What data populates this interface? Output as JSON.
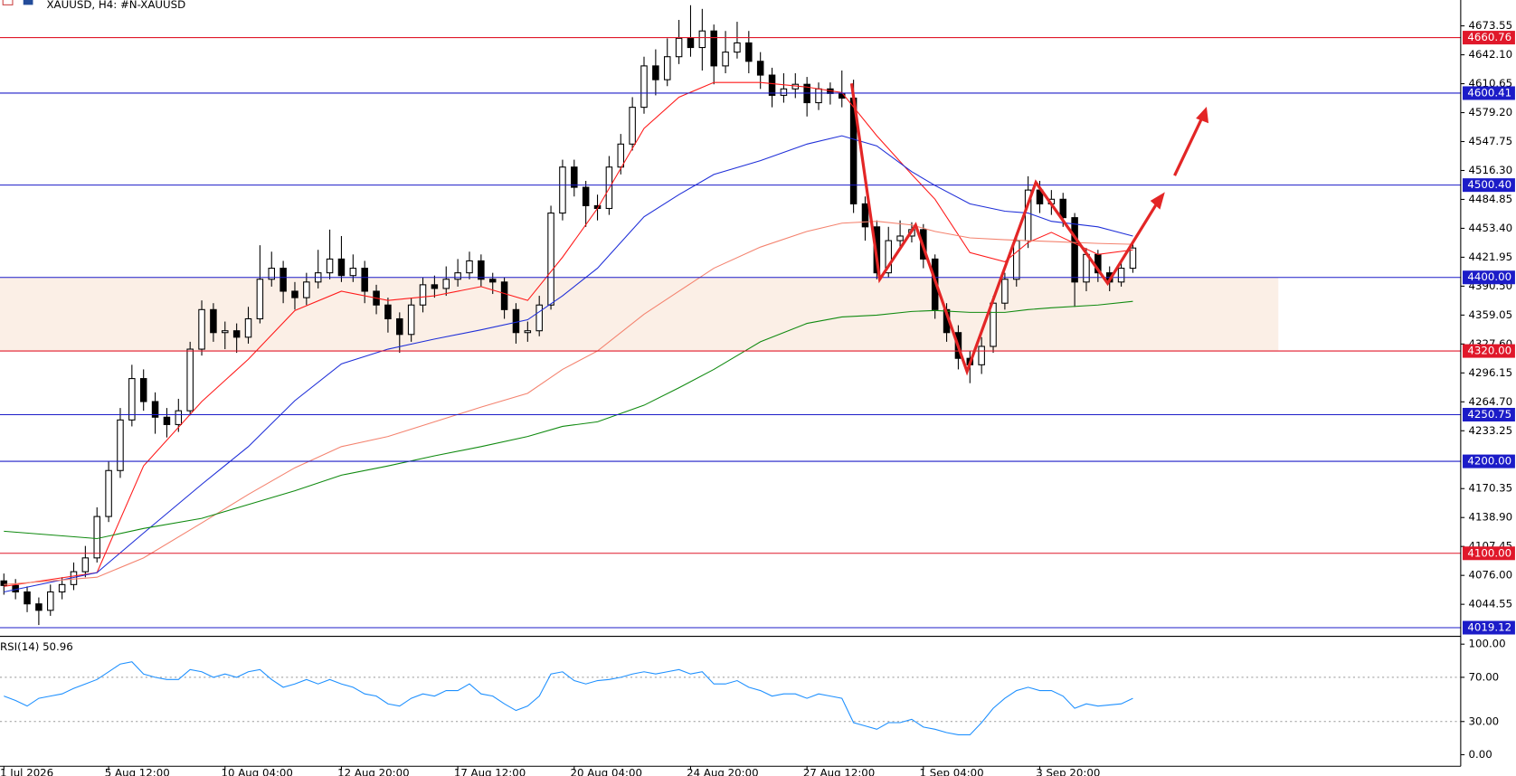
{
  "header": {
    "title": "XAUUSD, H4:  #N-XAUUSD"
  },
  "chart_data": [
    {
      "type": "candlestick",
      "categories": [
        "1 Jul 2026",
        null,
        null,
        null,
        null,
        null,
        null,
        null,
        null,
        "5 Aug 12:00",
        null,
        null,
        null,
        null,
        null,
        null,
        null,
        null,
        null,
        "10 Aug 04:00",
        null,
        null,
        null,
        null,
        null,
        null,
        null,
        null,
        null,
        "12 Aug 20:00",
        null,
        null,
        null,
        null,
        null,
        null,
        null,
        null,
        null,
        "17 Aug 12:00",
        null,
        null,
        null,
        null,
        null,
        null,
        null,
        null,
        null,
        "20 Aug 04:00",
        null,
        null,
        null,
        null,
        null,
        null,
        null,
        null,
        null,
        "24 Aug 20:00",
        null,
        null,
        null,
        null,
        null,
        null,
        null,
        null,
        null,
        "27 Aug 12:00",
        null,
        null,
        null,
        null,
        null,
        null,
        null,
        null,
        null,
        "1 Sep 04:00",
        null,
        null,
        null,
        null,
        null,
        null,
        null,
        null,
        null,
        "3 Sep 20:00",
        null,
        null,
        null,
        null,
        null,
        null,
        null,
        null
      ],
      "open": [
        4070,
        4065,
        4058,
        4045,
        4038,
        4058,
        4066,
        4080,
        4095,
        4140,
        4190,
        4245,
        4290,
        4265,
        4248,
        4240,
        4255,
        4322,
        4365,
        4340,
        4342,
        4335,
        4355,
        4398,
        4410,
        4385,
        4378,
        4395,
        4405,
        4420,
        4402,
        4410,
        4385,
        4370,
        4355,
        4338,
        4370,
        4392,
        4388,
        4398,
        4405,
        4418,
        4398,
        4395,
        4365,
        4340,
        4342,
        4370,
        4470,
        4520,
        4498,
        4478,
        4475,
        4520,
        4545,
        4585,
        4630,
        4615,
        4640,
        4660,
        4650,
        4668,
        4630,
        4645,
        4655,
        4635,
        4620,
        4598,
        4605,
        4610,
        4590,
        4605,
        4600,
        4595,
        4480,
        4455,
        4405,
        4440,
        4445,
        4452,
        4420,
        4365,
        4340,
        4312,
        4305,
        4325,
        4372,
        4398,
        4440,
        4495,
        4480,
        4485,
        4465,
        4395,
        4425,
        4405,
        4395,
        4410
      ],
      "high": [
        4078,
        4072,
        4064,
        4052,
        4066,
        4074,
        4090,
        4108,
        4150,
        4200,
        4258,
        4305,
        4300,
        4275,
        4258,
        4268,
        4330,
        4375,
        4372,
        4352,
        4350,
        4368,
        4435,
        4428,
        4418,
        4395,
        4405,
        4430,
        4452,
        4445,
        4425,
        4418,
        4392,
        4378,
        4362,
        4378,
        4400,
        4402,
        4412,
        4420,
        4428,
        4425,
        4405,
        4400,
        4372,
        4352,
        4380,
        4478,
        4528,
        4528,
        4505,
        4490,
        4532,
        4556,
        4596,
        4640,
        4648,
        4660,
        4680,
        4696,
        4692,
        4675,
        4668,
        4678,
        4668,
        4645,
        4628,
        4622,
        4622,
        4618,
        4612,
        4612,
        4625,
        4615,
        4488,
        4462,
        4455,
        4462,
        4460,
        4458,
        4425,
        4372,
        4348,
        4320,
        4335,
        4380,
        4405,
        4448,
        4510,
        4505,
        4495,
        4492,
        4470,
        4432,
        4430,
        4412,
        4418,
        4440
      ],
      "low": [
        4055,
        4050,
        4036,
        4022,
        4032,
        4050,
        4060,
        4074,
        4090,
        4134,
        4182,
        4238,
        4255,
        4230,
        4226,
        4232,
        4250,
        4315,
        4330,
        4322,
        4318,
        4328,
        4350,
        4390,
        4372,
        4365,
        4370,
        4388,
        4398,
        4395,
        4395,
        4372,
        4360,
        4340,
        4318,
        4330,
        4362,
        4378,
        4380,
        4390,
        4398,
        4390,
        4382,
        4355,
        4328,
        4330,
        4336,
        4365,
        4462,
        4488,
        4455,
        4462,
        4468,
        4512,
        4538,
        4578,
        4598,
        4608,
        4632,
        4640,
        4625,
        4610,
        4622,
        4638,
        4622,
        4605,
        4585,
        4590,
        4595,
        4575,
        4582,
        4588,
        4585,
        4470,
        4440,
        4398,
        4400,
        4432,
        4438,
        4410,
        4355,
        4330,
        4300,
        4285,
        4295,
        4318,
        4365,
        4390,
        4432,
        4470,
        4468,
        4455,
        4368,
        4385,
        4395,
        4385,
        4390,
        4405
      ],
      "close": [
        4065,
        4058,
        4045,
        4038,
        4058,
        4066,
        4080,
        4095,
        4140,
        4190,
        4245,
        4290,
        4265,
        4248,
        4240,
        4255,
        4322,
        4365,
        4340,
        4342,
        4335,
        4355,
        4398,
        4410,
        4385,
        4378,
        4395,
        4405,
        4420,
        4402,
        4410,
        4385,
        4370,
        4355,
        4338,
        4370,
        4392,
        4388,
        4398,
        4405,
        4418,
        4398,
        4395,
        4365,
        4340,
        4342,
        4370,
        4470,
        4520,
        4498,
        4478,
        4475,
        4520,
        4545,
        4585,
        4630,
        4615,
        4640,
        4660,
        4650,
        4668,
        4630,
        4645,
        4655,
        4635,
        4620,
        4598,
        4605,
        4610,
        4590,
        4605,
        4600,
        4595,
        4480,
        4455,
        4405,
        4440,
        4445,
        4452,
        4420,
        4365,
        4340,
        4312,
        4305,
        4325,
        4372,
        4398,
        4440,
        4495,
        4480,
        4485,
        4465,
        4395,
        4425,
        4405,
        4395,
        4410,
        4432
      ],
      "up_color": "#ffffff",
      "down_color": "#000000",
      "lines": [
        {
          "color": "#ff1a1a",
          "x": [
            0,
            8,
            12,
            17,
            21,
            25,
            29,
            33,
            37,
            41,
            45,
            48,
            51,
            55,
            58,
            61,
            65,
            69,
            72,
            75,
            78,
            80,
            83,
            86,
            88,
            90,
            94,
            97
          ],
          "values": [
            4064,
            4079,
            4195,
            4265,
            4311,
            4364,
            4385,
            4375,
            4380,
            4390,
            4375,
            4422,
            4475,
            4562,
            4596,
            4612,
            4612,
            4607,
            4601,
            4554,
            4512,
            4485,
            4427,
            4417,
            4438,
            4449,
            4425,
            4430
          ]
        },
        {
          "color": "#1f2fd8",
          "x": [
            0,
            8,
            12,
            17,
            21,
            25,
            29,
            33,
            37,
            41,
            45,
            48,
            51,
            55,
            58,
            61,
            65,
            69,
            72,
            75,
            78,
            80,
            83,
            86,
            88,
            90,
            94,
            97
          ],
          "values": [
            4058,
            4079,
            4122,
            4175,
            4216,
            4266,
            4306,
            4322,
            4333,
            4343,
            4354,
            4380,
            4410,
            4466,
            4490,
            4512,
            4527,
            4545,
            4554,
            4543,
            4515,
            4500,
            4480,
            4472,
            4470,
            4461,
            4455,
            4445
          ]
        },
        {
          "color": "#f4836f",
          "x": [
            0,
            8,
            12,
            17,
            21,
            25,
            29,
            33,
            37,
            41,
            45,
            48,
            51,
            55,
            58,
            61,
            65,
            69,
            72,
            75,
            78,
            80,
            83,
            86,
            88,
            90,
            94,
            97
          ],
          "values": [
            4066,
            4074,
            4095,
            4133,
            4164,
            4193,
            4216,
            4227,
            4243,
            4259,
            4274,
            4300,
            4320,
            4360,
            4385,
            4410,
            4433,
            4450,
            4459,
            4461,
            4457,
            4450,
            4443,
            4441,
            4440,
            4439,
            4437,
            4436
          ]
        },
        {
          "color": "#108a10",
          "x": [
            0,
            8,
            12,
            17,
            21,
            25,
            29,
            33,
            37,
            41,
            45,
            48,
            51,
            55,
            58,
            61,
            65,
            69,
            72,
            75,
            78,
            80,
            83,
            86,
            88,
            90,
            94,
            97
          ],
          "values": [
            4124,
            4116,
            4127,
            4138,
            4153,
            4168,
            4185,
            4195,
            4206,
            4216,
            4227,
            4238,
            4243,
            4261,
            4280,
            4300,
            4330,
            4350,
            4357,
            4359,
            4363,
            4364,
            4362,
            4362,
            4365,
            4367,
            4370,
            4374
          ]
        }
      ],
      "zone": {
        "from": 4320,
        "to": 4400,
        "color": "#fbefe6"
      },
      "levels": [
        {
          "value": 4660.76,
          "color": "#e0182a"
        },
        {
          "value": 4600.41,
          "color": "#1c1cc8"
        },
        {
          "value": 4500.4,
          "label": "4500.40",
          "color": "#1c1cc8"
        },
        {
          "value": 4400,
          "label": "4400.00",
          "color": "#1c1cc8"
        },
        {
          "value": 4320,
          "label": "4320.00",
          "color": "#e0182a"
        },
        {
          "value": 4250.75,
          "color": "#1c1cc8"
        },
        {
          "value": 4200,
          "label": "4200.00",
          "color": "#1c1cc8"
        },
        {
          "value": 4100,
          "label": "4100.00",
          "color": "#e0182a"
        },
        {
          "value": 4019.12,
          "color": "#1c1cc8"
        }
      ],
      "ylim": [
        4010.78,
        4701.67
      ],
      "yticks": [
        4673.55,
        {
          "value": 4642.1,
          "label": "4642.10"
        },
        4610.65,
        {
          "value": 4579.2,
          "label": "4579.20"
        },
        4547.75,
        {
          "value": 4516.3,
          "label": "4516.30"
        },
        4484.85,
        {
          "value": 4453.4,
          "label": "4453.40"
        },
        4421.95,
        {
          "value": 4390.5,
          "label": "4390.50"
        },
        4359.05,
        {
          "value": 4327.6,
          "label": "4327.60"
        },
        4296.15,
        {
          "value": 4264.7,
          "label": "4264.70"
        },
        4233.25,
        4170.35,
        {
          "value": 4138.9,
          "label": "4138.90"
        },
        4107.45,
        {
          "value": 4076,
          "label": "4076.00"
        },
        4044.55
      ]
    },
    {
      "type": "line",
      "title": "RSI(14) 50.96",
      "color": "#1e90ff",
      "values": [
        53,
        49,
        44,
        51,
        53,
        55,
        60,
        64,
        68,
        75,
        82,
        84,
        73,
        70,
        68,
        68,
        77,
        75,
        70,
        73,
        70,
        75,
        77,
        68,
        61,
        64,
        68,
        64,
        68,
        64,
        61,
        55,
        53,
        46,
        44,
        51,
        55,
        53,
        58,
        58,
        64,
        55,
        53,
        46,
        40,
        44,
        53,
        73,
        75,
        67,
        64,
        67,
        68,
        70,
        73,
        75,
        73,
        75,
        77,
        73,
        75,
        64,
        64,
        67,
        61,
        58,
        53,
        55,
        55,
        51,
        55,
        53,
        51,
        29,
        26,
        23,
        29,
        29,
        32,
        25,
        23,
        20,
        18,
        18,
        29,
        42,
        51,
        58,
        61,
        58,
        58,
        53,
        42,
        46,
        44,
        45,
        46,
        50.96
      ],
      "ylim": [
        -10.5,
        106.2
      ],
      "yticks": [
        {
          "value": 100,
          "label": "100.00"
        },
        {
          "value": 70,
          "label": "70.00"
        },
        {
          "value": 30,
          "label": "30.00"
        },
        {
          "value": 0,
          "label": "0.00"
        }
      ],
      "levels": [
        70,
        30
      ]
    }
  ]
}
